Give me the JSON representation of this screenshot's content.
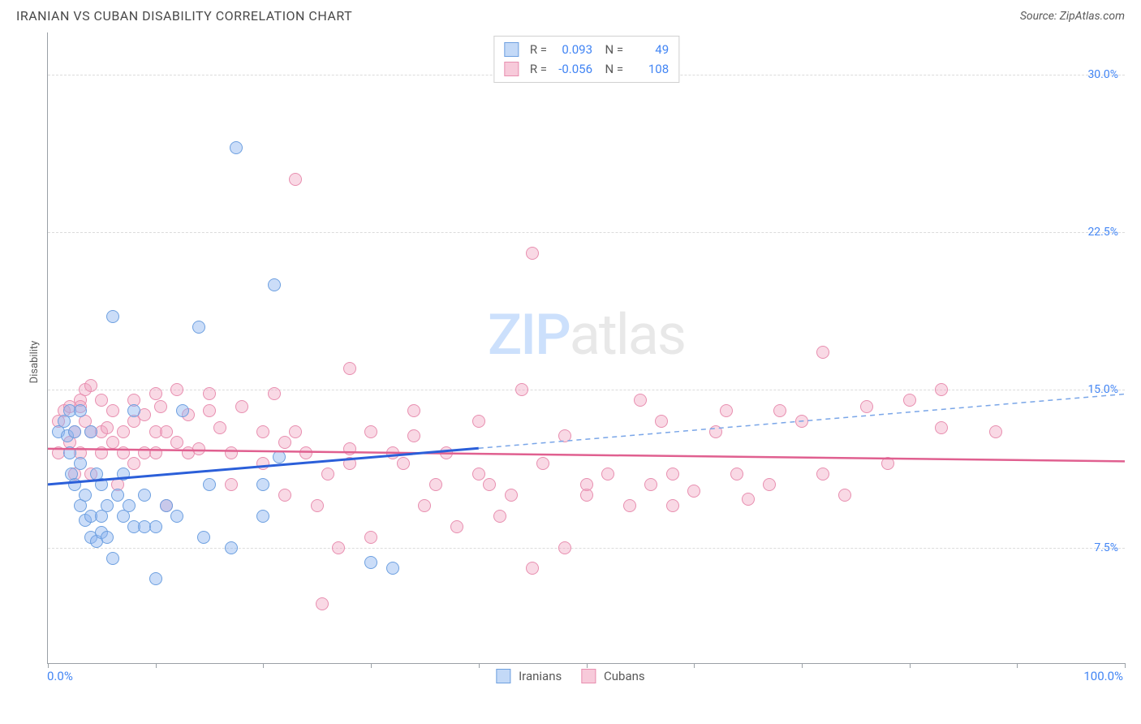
{
  "title": "IRANIAN VS CUBAN DISABILITY CORRELATION CHART",
  "source": "Source: ZipAtlas.com",
  "ylabel": "Disability",
  "xaxis": {
    "min_label": "0.0%",
    "max_label": "100.0%",
    "min": 0,
    "max": 100,
    "ticks": [
      0,
      10,
      20,
      30,
      40,
      50,
      60,
      70,
      80,
      90,
      100
    ]
  },
  "yaxis": {
    "min": 2,
    "max": 32,
    "gridlines": [
      7.5,
      15.0,
      22.5,
      30.0
    ],
    "labels": [
      "7.5%",
      "15.0%",
      "22.5%",
      "30.0%"
    ]
  },
  "series": {
    "iranians": {
      "label": "Iranians",
      "fill": "rgba(140,180,240,0.45)",
      "stroke": "#6ea0e0",
      "swatch_fill": "#c3d9f7",
      "swatch_border": "#6ea0e0",
      "R": "0.093",
      "N": "49",
      "trend": {
        "y_at_x0": 10.5,
        "y_at_x100": 14.8,
        "solid_until_x": 40,
        "solid_color": "#2b5fd9",
        "solid_width": 3,
        "dash_color": "#7aa6e8",
        "dash_width": 1.5
      },
      "points": [
        [
          1,
          13
        ],
        [
          1.5,
          13.5
        ],
        [
          1.8,
          12.8
        ],
        [
          2,
          12
        ],
        [
          2,
          14
        ],
        [
          2.2,
          11
        ],
        [
          2.5,
          10.5
        ],
        [
          2.5,
          13
        ],
        [
          3,
          9.5
        ],
        [
          3,
          11.5
        ],
        [
          3,
          14
        ],
        [
          3.5,
          8.8
        ],
        [
          3.5,
          10
        ],
        [
          4,
          8
        ],
        [
          4,
          9
        ],
        [
          4,
          13
        ],
        [
          4.5,
          7.8
        ],
        [
          4.5,
          11
        ],
        [
          5,
          9
        ],
        [
          5,
          10.5
        ],
        [
          5,
          8.2
        ],
        [
          5.5,
          9.5
        ],
        [
          5.5,
          8
        ],
        [
          6,
          18.5
        ],
        [
          6,
          7
        ],
        [
          6.5,
          10
        ],
        [
          7,
          9
        ],
        [
          7,
          11
        ],
        [
          7.5,
          9.5
        ],
        [
          8,
          8.5
        ],
        [
          8,
          14
        ],
        [
          9,
          10
        ],
        [
          9,
          8.5
        ],
        [
          10,
          6
        ],
        [
          10,
          8.5
        ],
        [
          11,
          9.5
        ],
        [
          12,
          9
        ],
        [
          12.5,
          14
        ],
        [
          14,
          18
        ],
        [
          14.5,
          8
        ],
        [
          15,
          10.5
        ],
        [
          17,
          7.5
        ],
        [
          17.5,
          26.5
        ],
        [
          20,
          9
        ],
        [
          20,
          10.5
        ],
        [
          21,
          20
        ],
        [
          21.5,
          11.8
        ],
        [
          30,
          6.8
        ],
        [
          32,
          6.5
        ]
      ]
    },
    "cubans": {
      "label": "Cubans",
      "fill": "rgba(240,160,190,0.40)",
      "stroke": "#e88fb0",
      "swatch_fill": "#f7cada",
      "swatch_border": "#e88fb0",
      "R": "-0.056",
      "N": "108",
      "trend": {
        "y_at_x0": 12.2,
        "y_at_x100": 11.6,
        "color": "#e06090",
        "width": 2.5
      },
      "points": [
        [
          1,
          12
        ],
        [
          1,
          13.5
        ],
        [
          1.5,
          14
        ],
        [
          2,
          12.5
        ],
        [
          2,
          14.2
        ],
        [
          2.5,
          13
        ],
        [
          2.5,
          11
        ],
        [
          3,
          14.5
        ],
        [
          3,
          12
        ],
        [
          3,
          14.2
        ],
        [
          3.5,
          13.5
        ],
        [
          3.5,
          15
        ],
        [
          4,
          13
        ],
        [
          4,
          11
        ],
        [
          4,
          15.2
        ],
        [
          5,
          12
        ],
        [
          5,
          13
        ],
        [
          5,
          14.5
        ],
        [
          5.5,
          13.2
        ],
        [
          6,
          12.5
        ],
        [
          6,
          14
        ],
        [
          6.5,
          10.5
        ],
        [
          7,
          13
        ],
        [
          7,
          12
        ],
        [
          8,
          13.5
        ],
        [
          8,
          11.5
        ],
        [
          8,
          14.5
        ],
        [
          9,
          12
        ],
        [
          9,
          13.8
        ],
        [
          10,
          13
        ],
        [
          10,
          12
        ],
        [
          10,
          14.8
        ],
        [
          10.5,
          14.2
        ],
        [
          11,
          9.5
        ],
        [
          11,
          13
        ],
        [
          12,
          15
        ],
        [
          12,
          12.5
        ],
        [
          13,
          12
        ],
        [
          13,
          13.8
        ],
        [
          14,
          12.2
        ],
        [
          15,
          14
        ],
        [
          15,
          14.8
        ],
        [
          16,
          13.2
        ],
        [
          17,
          10.5
        ],
        [
          17,
          12
        ],
        [
          18,
          14.2
        ],
        [
          20,
          13
        ],
        [
          20,
          11.5
        ],
        [
          21,
          14.8
        ],
        [
          22,
          10
        ],
        [
          22,
          12.5
        ],
        [
          23,
          25
        ],
        [
          23,
          13
        ],
        [
          24,
          12
        ],
        [
          25,
          9.5
        ],
        [
          25.5,
          4.8
        ],
        [
          26,
          11
        ],
        [
          27,
          7.5
        ],
        [
          28,
          12.2
        ],
        [
          28,
          16
        ],
        [
          28,
          11.5
        ],
        [
          30,
          13
        ],
        [
          30,
          8
        ],
        [
          32,
          12
        ],
        [
          33,
          11.5
        ],
        [
          34,
          14
        ],
        [
          34,
          12.8
        ],
        [
          35,
          9.5
        ],
        [
          36,
          10.5
        ],
        [
          37,
          12
        ],
        [
          38,
          8.5
        ],
        [
          40,
          13.5
        ],
        [
          40,
          11
        ],
        [
          41,
          10.5
        ],
        [
          42,
          9
        ],
        [
          43,
          10
        ],
        [
          44,
          15
        ],
        [
          45,
          21.5
        ],
        [
          45,
          6.5
        ],
        [
          46,
          11.5
        ],
        [
          48,
          7.5
        ],
        [
          48,
          12.8
        ],
        [
          50,
          10
        ],
        [
          50,
          10.5
        ],
        [
          52,
          11
        ],
        [
          54,
          9.5
        ],
        [
          55,
          14.5
        ],
        [
          56,
          10.5
        ],
        [
          57,
          13.5
        ],
        [
          58,
          11
        ],
        [
          58,
          9.5
        ],
        [
          60,
          10.2
        ],
        [
          62,
          13
        ],
        [
          63,
          14
        ],
        [
          64,
          11
        ],
        [
          65,
          9.8
        ],
        [
          67,
          10.5
        ],
        [
          68,
          14
        ],
        [
          70,
          13.5
        ],
        [
          72,
          16.8
        ],
        [
          72,
          11
        ],
        [
          74,
          10
        ],
        [
          76,
          14.2
        ],
        [
          78,
          11.5
        ],
        [
          80,
          14.5
        ],
        [
          83,
          15
        ],
        [
          83,
          13.2
        ],
        [
          88,
          13
        ]
      ]
    }
  },
  "watermark": {
    "z": "ZIP",
    "rest": "atlas"
  }
}
